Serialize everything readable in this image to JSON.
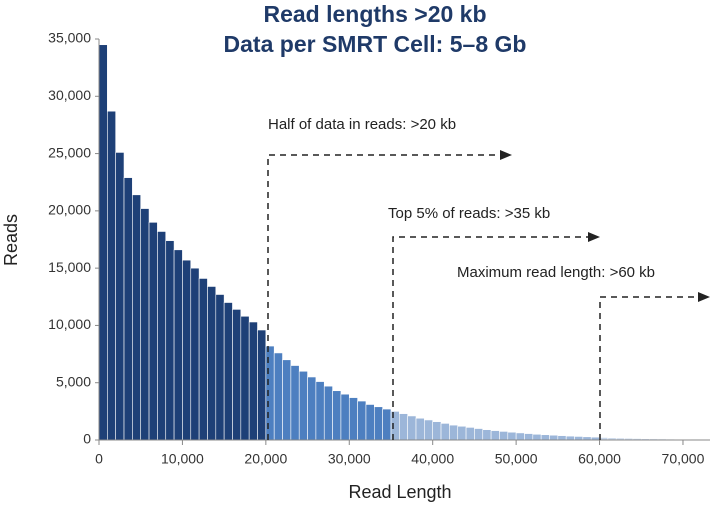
{
  "chart_data": {
    "type": "histogram",
    "title": [
      "Read lengths >20 kb",
      "Data per SMRT Cell: 5–8 Gb"
    ],
    "xlabel": "Read Length",
    "ylabel": "Reads",
    "annotations": [
      "Half of data in reads: >20 kb",
      "Top 5% of reads: >35 kb",
      "Maximum read length: >60 kb"
    ],
    "bins": [
      0,
      1000,
      2000,
      3000,
      4000,
      5000,
      6000,
      7000,
      8000,
      9000,
      10000,
      11000,
      12000,
      13000,
      14000,
      15000,
      16000,
      17000,
      18000,
      19000,
      20000,
      21000,
      22000,
      23000,
      24000,
      25000,
      26000,
      27000,
      28000,
      29000,
      30000,
      31000,
      32000,
      33000,
      34000,
      35000,
      36000,
      37000,
      38000,
      39000,
      40000,
      41000,
      42000,
      43000,
      44000,
      45000,
      46000,
      47000,
      48000,
      49000,
      50000,
      51000,
      52000,
      53000,
      54000,
      55000,
      56000,
      57000,
      58000,
      59000,
      60000,
      61000,
      62000,
      63000,
      64000,
      65000,
      66000,
      67000,
      68000,
      69000,
      70000,
      71000,
      72000,
      73000
    ],
    "counts": [
      34500,
      28700,
      25100,
      22900,
      21400,
      20200,
      19000,
      18200,
      17400,
      16600,
      15700,
      15000,
      14100,
      13400,
      12700,
      12000,
      11400,
      10800,
      10300,
      9600,
      8200,
      7600,
      7000,
      6500,
      6000,
      5500,
      5100,
      4700,
      4300,
      4000,
      3700,
      3400,
      3100,
      2900,
      2700,
      2500,
      2300,
      2100,
      1900,
      1750,
      1600,
      1450,
      1300,
      1200,
      1100,
      1000,
      900,
      820,
      750,
      680,
      620,
      560,
      500,
      460,
      420,
      380,
      340,
      310,
      280,
      250,
      220,
      190,
      170,
      150,
      130,
      110,
      100,
      90,
      80,
      70,
      60,
      50,
      40
    ],
    "colors": [
      "#1e4077",
      "#1e4077",
      "#1e4077",
      "#1e4077",
      "#1e4077",
      "#1e4077",
      "#1e4077",
      "#1e4077",
      "#1e4077",
      "#1e4077",
      "#1e4077",
      "#1e4077",
      "#1e4077",
      "#1e4077",
      "#1e4077",
      "#1e4077",
      "#1e4077",
      "#1e4077",
      "#1e4077",
      "#1e4077",
      "#4d7fc0",
      "#4d7fc0",
      "#4d7fc0",
      "#4d7fc0",
      "#4d7fc0",
      "#4d7fc0",
      "#4d7fc0",
      "#4d7fc0",
      "#4d7fc0",
      "#4d7fc0",
      "#4d7fc0",
      "#4d7fc0",
      "#4d7fc0",
      "#4d7fc0",
      "#4d7fc0",
      "#9cb6d9",
      "#9cb6d9",
      "#9cb6d9",
      "#9cb6d9",
      "#9cb6d9",
      "#9cb6d9",
      "#9cb6d9",
      "#9cb6d9",
      "#9cb6d9",
      "#9cb6d9",
      "#9cb6d9",
      "#9cb6d9",
      "#9cb6d9",
      "#9cb6d9",
      "#9cb6d9",
      "#9cb6d9",
      "#9cb6d9",
      "#9cb6d9",
      "#9cb6d9",
      "#9cb6d9",
      "#9cb6d9",
      "#9cb6d9",
      "#9cb6d9",
      "#9cb6d9",
      "#9cb6d9",
      "#c8d6ea",
      "#c8d6ea",
      "#c8d6ea",
      "#c8d6ea",
      "#c8d6ea",
      "#c8d6ea",
      "#c8d6ea",
      "#c8d6ea",
      "#c8d6ea",
      "#c8d6ea",
      "#c8d6ea",
      "#c8d6ea",
      "#c8d6ea"
    ],
    "xlim": [
      0,
      73000
    ],
    "ylim": [
      0,
      35000
    ],
    "xticks": [
      0,
      {
        "value": 10000,
        "label": "10,000"
      },
      {
        "value": 20000,
        "label": "20,000"
      },
      {
        "value": 30000,
        "label": "30,000"
      },
      {
        "value": 40000,
        "label": "40,000"
      },
      {
        "value": 50000,
        "label": "50,000"
      },
      {
        "value": 60000,
        "label": "60,000"
      },
      {
        "value": 70000,
        "label": "70,000"
      }
    ],
    "yticks": [
      0,
      {
        "value": 5000,
        "label": "5,000"
      },
      {
        "value": 10000,
        "label": "10,000"
      },
      {
        "value": 15000,
        "label": "15,000"
      },
      {
        "value": 20000,
        "label": "20,000"
      },
      {
        "value": 25000,
        "label": "25,000"
      },
      {
        "value": 30000,
        "label": "30,000"
      },
      {
        "value": 35000,
        "label": "35,000"
      }
    ],
    "grid": false
  }
}
